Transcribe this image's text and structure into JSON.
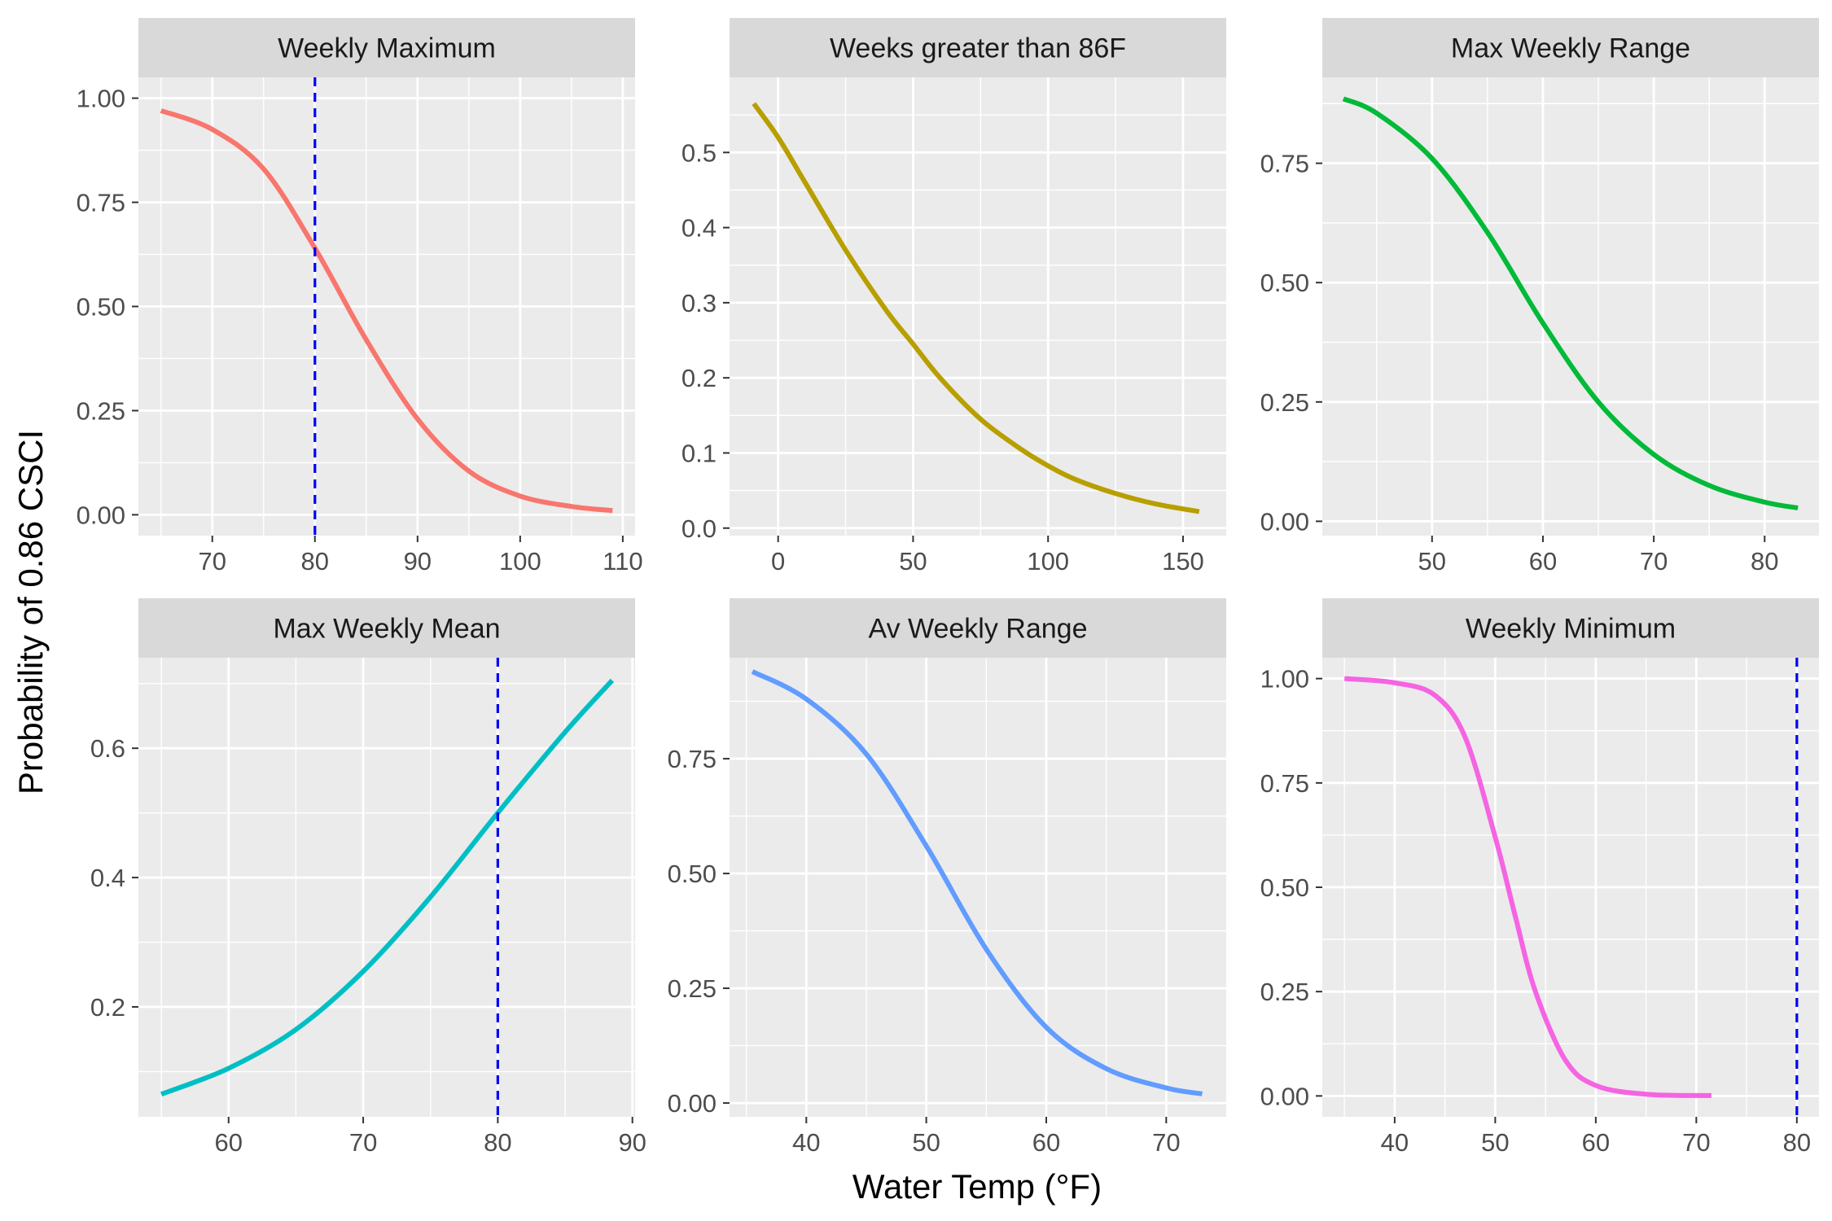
{
  "figure": {
    "xlabel": "Water Temp (°F)",
    "ylabel": "Probability of 0.86 CSCI",
    "panel_background": "#EBEBEB",
    "strip_background": "#D9D9D9",
    "grid_color": "#FFFFFF",
    "reference_line_color": "#0000FF"
  },
  "chart_data": [
    {
      "type": "line",
      "title": "Weekly Maximum",
      "color": "#F8766D",
      "xlim": [
        62.8,
        111.2
      ],
      "ylim": [
        -0.05,
        1.05
      ],
      "x_ticks": [
        70,
        80,
        90,
        100,
        110
      ],
      "y_ticks": [
        0,
        0.25,
        0.5,
        0.75,
        1
      ],
      "y_tick_labels": [
        "0.00",
        "0.25",
        "0.50",
        "0.75",
        "1.00"
      ],
      "reference_x": 80,
      "x": [
        65,
        70,
        75,
        80,
        85,
        90,
        95,
        100,
        105,
        109
      ],
      "y": [
        0.97,
        0.925,
        0.83,
        0.64,
        0.42,
        0.23,
        0.105,
        0.045,
        0.02,
        0.01
      ]
    },
    {
      "type": "line",
      "title": "Weeks greater than 86F",
      "color": "#B79F00",
      "xlim": [
        -18,
        166
      ],
      "ylim": [
        -0.01,
        0.6
      ],
      "x_ticks": [
        0,
        50,
        100,
        150
      ],
      "y_ticks": [
        0,
        0.1,
        0.2,
        0.3,
        0.4,
        0.5
      ],
      "y_tick_labels": [
        "0.0",
        "0.1",
        "0.2",
        "0.3",
        "0.4",
        "0.5"
      ],
      "x": [
        -9,
        0,
        10,
        25,
        40,
        50,
        60,
        75,
        90,
        100,
        110,
        125,
        140,
        156
      ],
      "y": [
        0.565,
        0.52,
        0.46,
        0.37,
        0.29,
        0.245,
        0.2,
        0.145,
        0.105,
        0.083,
        0.065,
        0.046,
        0.032,
        0.022
      ]
    },
    {
      "type": "line",
      "title": "Max Weekly Range",
      "color": "#00BA38",
      "xlim": [
        40.1,
        84.9
      ],
      "ylim": [
        -0.03,
        0.93
      ],
      "x_ticks": [
        50,
        60,
        70,
        80
      ],
      "y_ticks": [
        0,
        0.25,
        0.5,
        0.75
      ],
      "y_tick_labels": [
        "0.00",
        "0.25",
        "0.50",
        "0.75"
      ],
      "x": [
        42,
        45,
        50,
        55,
        60,
        65,
        70,
        75,
        80,
        83
      ],
      "y": [
        0.885,
        0.855,
        0.76,
        0.605,
        0.415,
        0.25,
        0.14,
        0.075,
        0.04,
        0.028
      ]
    },
    {
      "type": "line",
      "title": "Max Weekly Mean",
      "color": "#00BFC4",
      "xlim": [
        53.3,
        90.2
      ],
      "ylim": [
        0.03,
        0.74
      ],
      "x_ticks": [
        60,
        70,
        80,
        90
      ],
      "y_ticks": [
        0.2,
        0.4,
        0.6
      ],
      "y_tick_labels": [
        "0.2",
        "0.4",
        "0.6"
      ],
      "reference_x": 80,
      "x": [
        55,
        60,
        65,
        70,
        75,
        80,
        85,
        88.5
      ],
      "y": [
        0.065,
        0.105,
        0.165,
        0.255,
        0.37,
        0.5,
        0.625,
        0.705
      ]
    },
    {
      "type": "line",
      "title": "Av Weekly Range",
      "color": "#619CFF",
      "xlim": [
        33.6,
        75.0
      ],
      "ylim": [
        -0.03,
        0.97
      ],
      "x_ticks": [
        40,
        50,
        60,
        70
      ],
      "y_ticks": [
        0,
        0.25,
        0.5,
        0.75
      ],
      "y_tick_labels": [
        "0.00",
        "0.25",
        "0.50",
        "0.75"
      ],
      "x": [
        35.5,
        40,
        45,
        50,
        55,
        60,
        65,
        70,
        73
      ],
      "y": [
        0.94,
        0.88,
        0.76,
        0.56,
        0.335,
        0.165,
        0.075,
        0.033,
        0.02
      ]
    },
    {
      "type": "line",
      "title": "Weekly Minimum",
      "color": "#F564E3",
      "xlim": [
        32.8,
        82.2
      ],
      "ylim": [
        -0.05,
        1.05
      ],
      "x_ticks": [
        40,
        50,
        60,
        70,
        80
      ],
      "y_ticks": [
        0,
        0.25,
        0.5,
        0.75,
        1
      ],
      "y_tick_labels": [
        "0.00",
        "0.25",
        "0.50",
        "0.75",
        "1.00"
      ],
      "reference_x": 80,
      "x": [
        35,
        40,
        44,
        47,
        50,
        52,
        54,
        57,
        60,
        65,
        71.5
      ],
      "y": [
        1.0,
        0.99,
        0.96,
        0.86,
        0.62,
        0.43,
        0.25,
        0.085,
        0.025,
        0.004,
        0.001
      ]
    }
  ]
}
